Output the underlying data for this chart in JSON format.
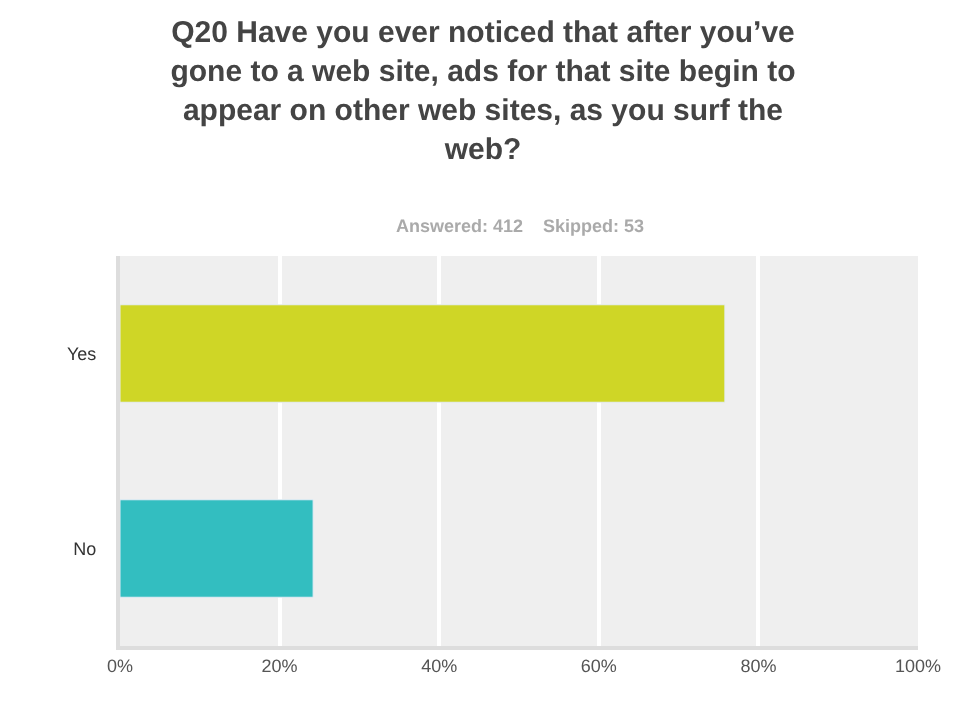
{
  "chart_data": {
    "type": "bar",
    "orientation": "horizontal",
    "title": "Q20 Have you ever noticed that after you’ve gone to a web site, ads for that site begin to appear on other web sites, as you surf the web?",
    "subtitle": "Answered: 412    Skipped: 53",
    "categories": [
      "Yes",
      "No"
    ],
    "values": [
      75.8,
      24.2
    ],
    "colors": [
      "#cfd626",
      "#33bec0"
    ],
    "xlim": [
      0,
      100
    ],
    "xticks": [
      {
        "value": 0,
        "label": "0%"
      },
      {
        "value": 20,
        "label": "20%"
      },
      {
        "value": 40,
        "label": "40%"
      },
      {
        "value": 60,
        "label": "60%"
      },
      {
        "value": 80,
        "label": "80%"
      },
      {
        "value": 100,
        "label": "100%"
      }
    ],
    "grid": "x"
  }
}
